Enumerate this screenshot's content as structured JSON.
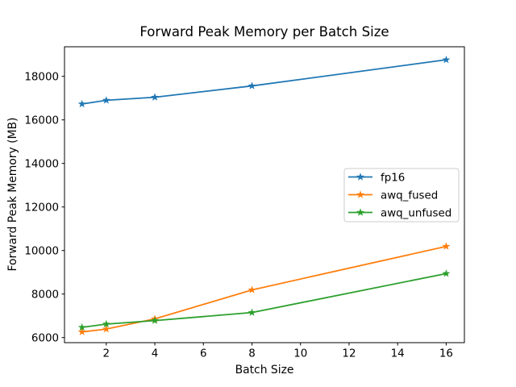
{
  "chart_data": {
    "type": "line",
    "title": "Forward Peak Memory per Batch Size",
    "xlabel": "Batch Size",
    "ylabel": "Forward Peak Memory (MB)",
    "x": [
      1,
      2,
      4,
      8,
      16
    ],
    "series": [
      {
        "name": "fp16",
        "color": "#1f77b4",
        "values": [
          16730,
          16900,
          17040,
          17560,
          18760
        ]
      },
      {
        "name": "awq_fused",
        "color": "#ff7f0e",
        "values": [
          6260,
          6390,
          6860,
          8190,
          10190
        ]
      },
      {
        "name": "awq_unfused",
        "color": "#2ca02c",
        "values": [
          6470,
          6620,
          6780,
          7150,
          8940
        ]
      }
    ],
    "xticks": [
      2,
      4,
      6,
      8,
      10,
      12,
      14,
      16
    ],
    "yticks": [
      6000,
      8000,
      10000,
      12000,
      14000,
      16000,
      18000
    ],
    "xlim": [
      0.28,
      16.75
    ],
    "ylim": [
      5767,
      19359
    ],
    "grid": false,
    "marker": "star",
    "legend_position": "center-right",
    "background_color": "#ffffff",
    "spine_color": "#000000",
    "text_color": "#000000",
    "legend_border_color": "#cccccc"
  }
}
